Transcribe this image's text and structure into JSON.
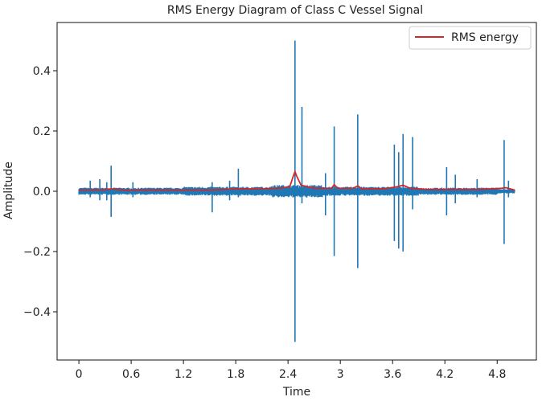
{
  "chart_data": {
    "type": "line",
    "title": "RMS Energy Diagram of Class C Vessel Signal",
    "xlabel": "Time",
    "ylabel": "Amplitude",
    "xlim": [
      -0.25,
      5.25
    ],
    "ylim": [
      -0.56,
      0.56
    ],
    "x_ticks": [
      0,
      0.6,
      1.2,
      1.8,
      2.4,
      3.0,
      3.6,
      4.2,
      4.8
    ],
    "x_tick_labels": [
      "0",
      "0.6",
      "1.2",
      "1.8",
      "2.4",
      "3",
      "3.6",
      "4.2",
      "4.8"
    ],
    "y_ticks": [
      -0.4,
      -0.2,
      0.0,
      0.2,
      0.4
    ],
    "y_tick_labels": [
      "−0.4",
      "−0.2",
      "0.0",
      "0.2",
      "0.4"
    ],
    "grid": false,
    "legend": {
      "position": "top-right",
      "entries": [
        {
          "label": "RMS energy",
          "color": "#d62728"
        }
      ]
    },
    "colors": {
      "waveform": "#1f77b4",
      "rms": "#d62728"
    },
    "series": [
      {
        "role": "waveform",
        "baseline_noise_amplitude": 0.012,
        "spikes": [
          {
            "t": 0.13,
            "up": 0.035,
            "down": -0.02
          },
          {
            "t": 0.24,
            "up": 0.04,
            "down": -0.03
          },
          {
            "t": 0.32,
            "up": 0.03,
            "down": -0.03
          },
          {
            "t": 0.37,
            "up": 0.085,
            "down": -0.085
          },
          {
            "t": 0.62,
            "up": 0.03,
            "down": -0.02
          },
          {
            "t": 1.53,
            "up": 0.03,
            "down": -0.07
          },
          {
            "t": 1.73,
            "up": 0.035,
            "down": -0.03
          },
          {
            "t": 1.83,
            "up": 0.075,
            "down": -0.02
          },
          {
            "t": 2.48,
            "up": 0.5,
            "down": -0.5
          },
          {
            "t": 2.56,
            "up": 0.28,
            "down": -0.04
          },
          {
            "t": 2.83,
            "up": 0.06,
            "down": -0.08
          },
          {
            "t": 2.93,
            "up": 0.215,
            "down": -0.215
          },
          {
            "t": 3.2,
            "up": 0.255,
            "down": -0.255
          },
          {
            "t": 3.62,
            "up": 0.155,
            "down": -0.165
          },
          {
            "t": 3.67,
            "up": 0.13,
            "down": -0.19
          },
          {
            "t": 3.72,
            "up": 0.19,
            "down": -0.2
          },
          {
            "t": 3.83,
            "up": 0.18,
            "down": -0.06
          },
          {
            "t": 4.22,
            "up": 0.08,
            "down": -0.08
          },
          {
            "t": 4.32,
            "up": 0.055,
            "down": -0.04
          },
          {
            "t": 4.57,
            "up": 0.04,
            "down": -0.02
          },
          {
            "t": 4.88,
            "up": 0.17,
            "down": -0.175
          },
          {
            "t": 4.93,
            "up": 0.035,
            "down": -0.02
          }
        ]
      },
      {
        "name": "RMS energy",
        "role": "rms",
        "points": [
          [
            0,
            0.004
          ],
          [
            0.3,
            0.005
          ],
          [
            0.37,
            0.008
          ],
          [
            0.5,
            0.004
          ],
          [
            1.0,
            0.004
          ],
          [
            1.5,
            0.004
          ],
          [
            1.8,
            0.008
          ],
          [
            2.0,
            0.008
          ],
          [
            2.3,
            0.01
          ],
          [
            2.42,
            0.015
          ],
          [
            2.46,
            0.05
          ],
          [
            2.48,
            0.065
          ],
          [
            2.5,
            0.05
          ],
          [
            2.55,
            0.02
          ],
          [
            2.7,
            0.01
          ],
          [
            2.9,
            0.01
          ],
          [
            2.93,
            0.022
          ],
          [
            2.97,
            0.01
          ],
          [
            3.15,
            0.01
          ],
          [
            3.2,
            0.018
          ],
          [
            3.25,
            0.008
          ],
          [
            3.5,
            0.008
          ],
          [
            3.65,
            0.015
          ],
          [
            3.72,
            0.02
          ],
          [
            3.8,
            0.01
          ],
          [
            4.0,
            0.006
          ],
          [
            4.3,
            0.006
          ],
          [
            4.6,
            0.006
          ],
          [
            4.85,
            0.01
          ],
          [
            4.9,
            0.012
          ],
          [
            5.0,
            0.004
          ]
        ]
      }
    ]
  }
}
